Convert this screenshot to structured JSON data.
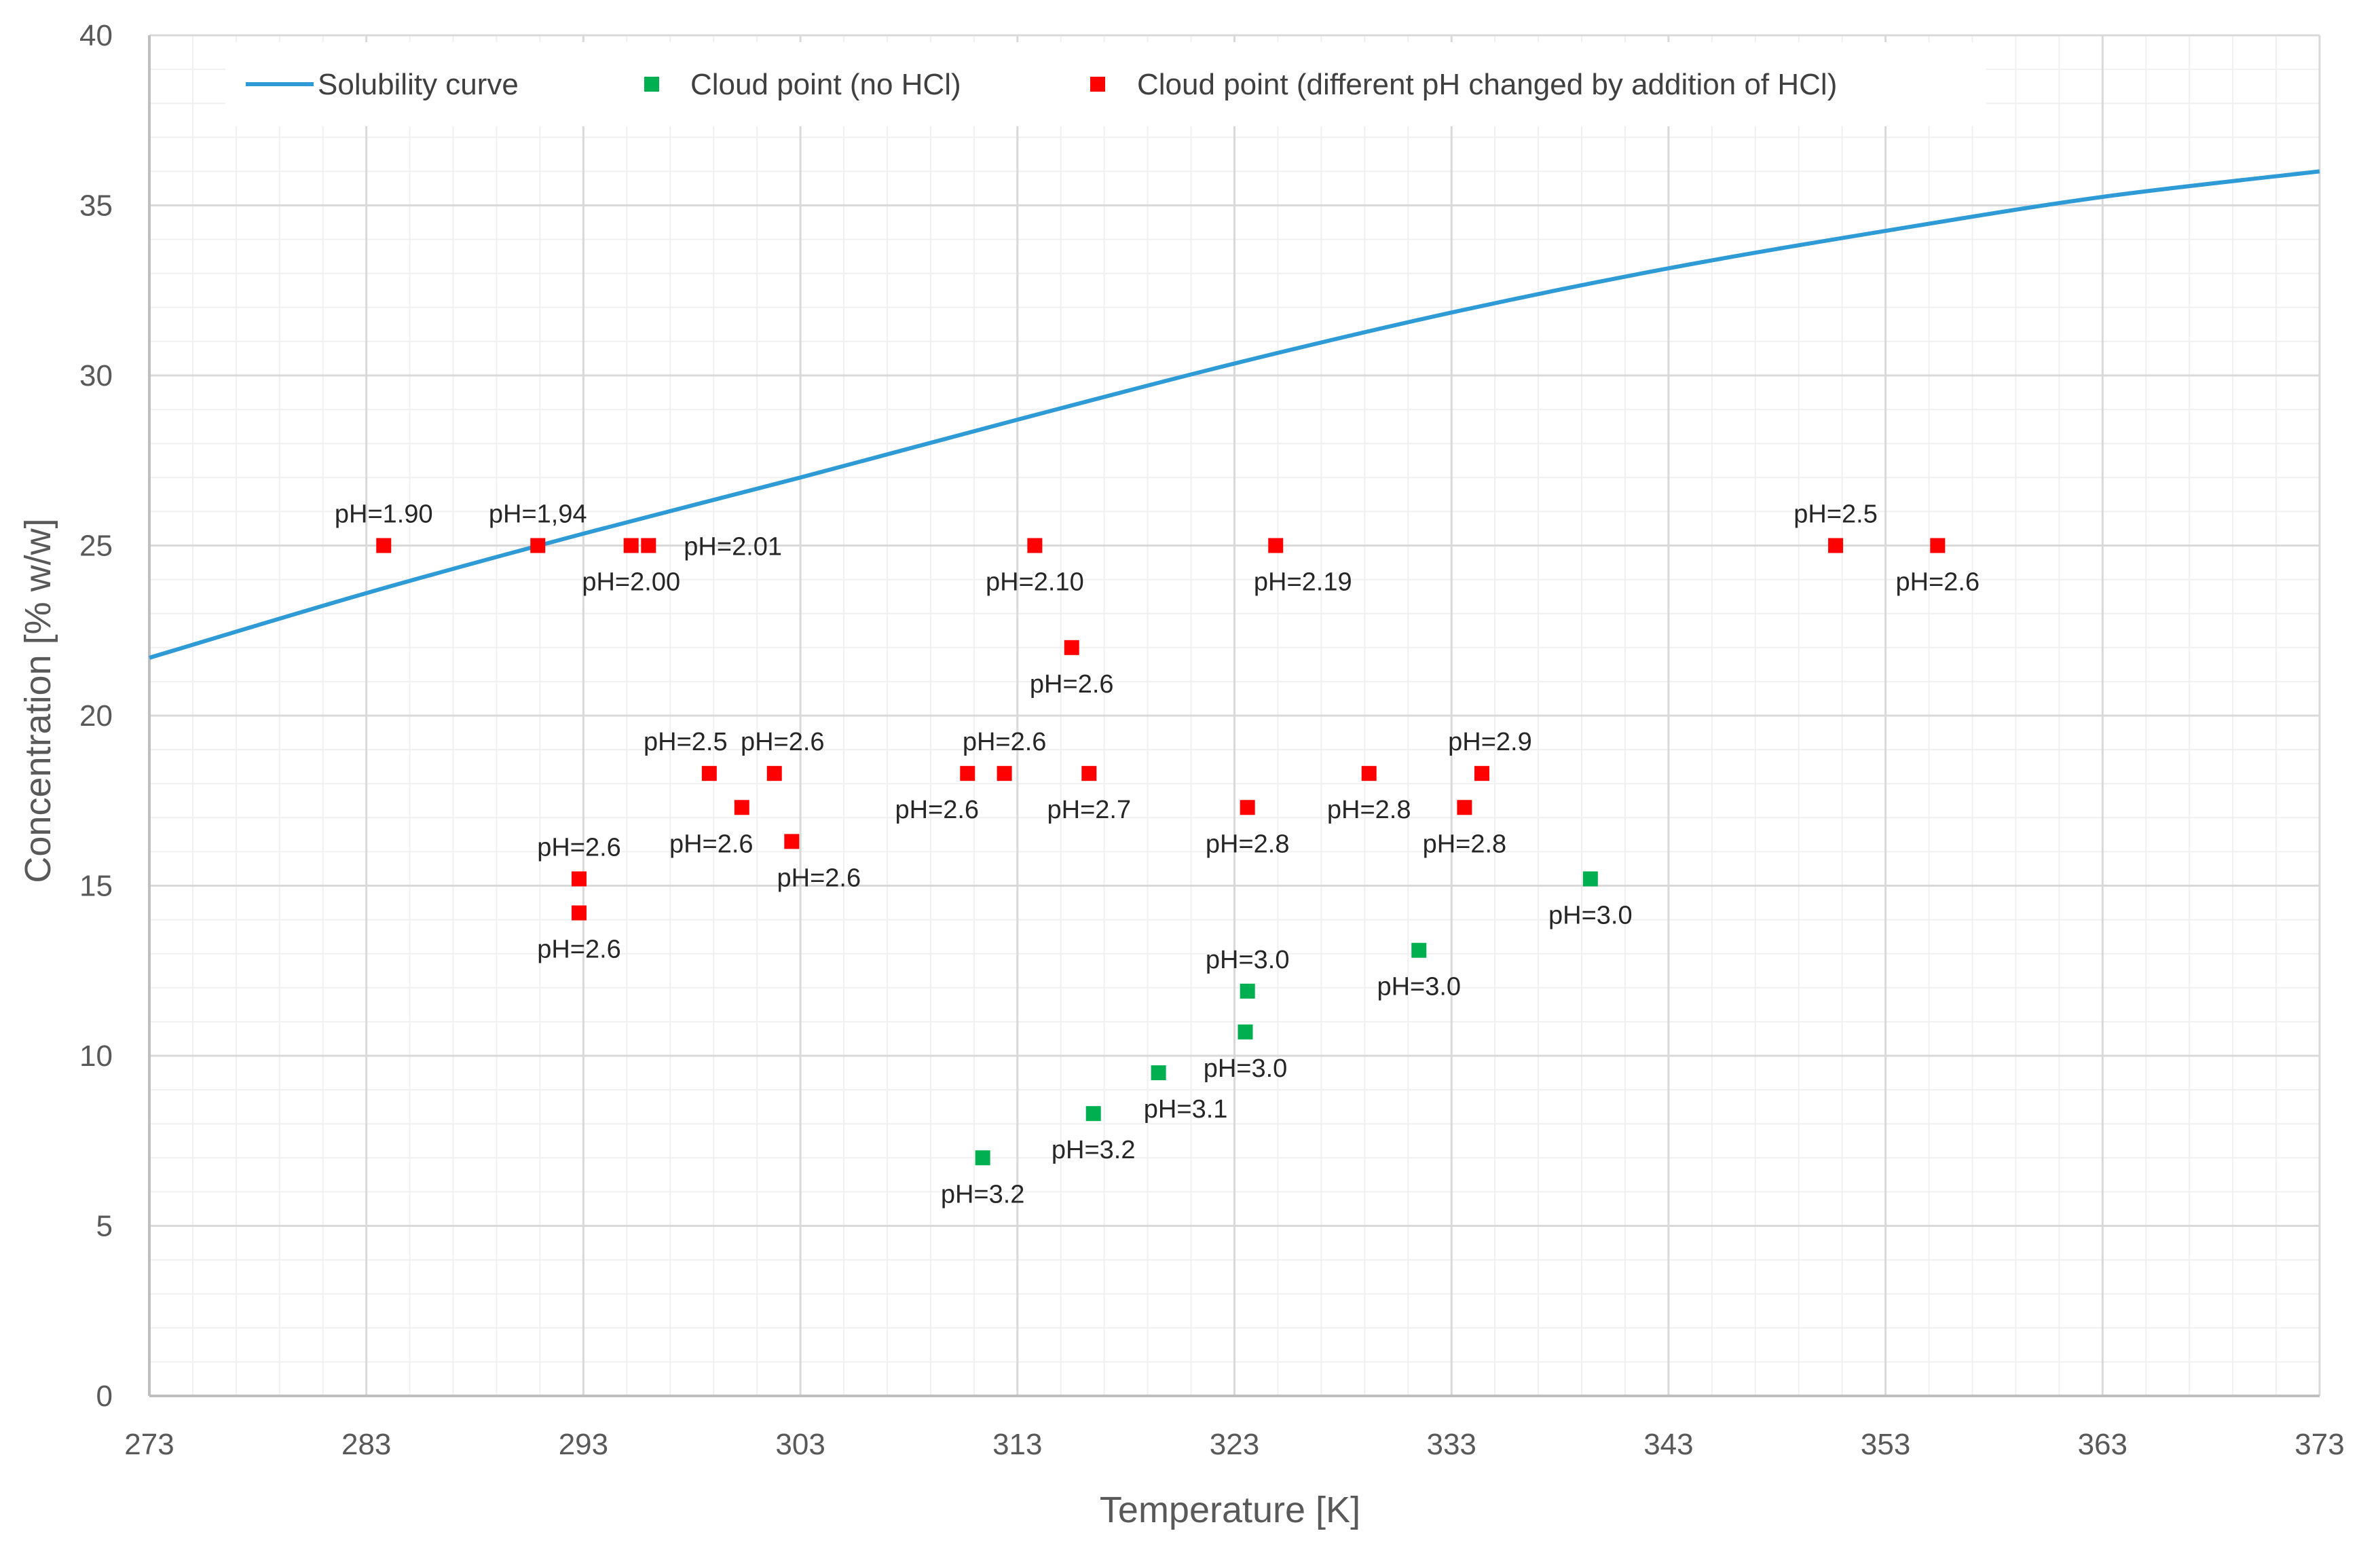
{
  "chart_data": {
    "type": "scatter",
    "xlabel": "Temperature [K]",
    "ylabel": "Concentration [% w/w]",
    "xlim": [
      273,
      373
    ],
    "ylim": [
      0,
      40
    ],
    "x_ticks": [
      273,
      283,
      293,
      303,
      313,
      323,
      333,
      343,
      353,
      363,
      373
    ],
    "y_ticks": [
      0,
      5,
      10,
      15,
      20,
      25,
      30,
      35,
      40
    ],
    "x_minor_step": 2,
    "y_minor_step": 1,
    "grid": true,
    "legend_position": "top",
    "colors": {
      "solubility": "#2e9bd6",
      "no_hcl": "#00b050",
      "hcl": "#ff0000",
      "major_grid": "#d9d9d9",
      "minor_grid": "#f0f0f0",
      "axis": "#bfbfbf"
    },
    "series": [
      {
        "name": "Solubility curve",
        "kind": "line",
        "key": "solubility",
        "x": [
          273,
          283,
          293,
          303,
          313,
          323,
          333,
          343,
          353,
          363,
          373
        ],
        "y": [
          21.7,
          23.6,
          25.35,
          27.0,
          28.7,
          30.35,
          31.85,
          33.15,
          34.25,
          35.25,
          36.0
        ]
      },
      {
        "name": "Cloud point (no HCl)",
        "kind": "scatter",
        "key": "no_hcl",
        "points": [
          {
            "x": 311.4,
            "y": 7.0,
            "label": "pH=3.2",
            "label_pos": "below"
          },
          {
            "x": 316.5,
            "y": 8.3,
            "label": "pH=3.2",
            "label_pos": "below"
          },
          {
            "x": 319.5,
            "y": 9.5,
            "label": "pH=3.1",
            "label_pos": "below-right"
          },
          {
            "x": 323.5,
            "y": 10.7,
            "label": "pH=3.0",
            "label_pos": "below"
          },
          {
            "x": 323.6,
            "y": 11.9,
            "label": "pH=3.0",
            "label_pos": "above"
          },
          {
            "x": 331.5,
            "y": 13.1,
            "label": "pH=3.0",
            "label_pos": "below"
          },
          {
            "x": 339.4,
            "y": 15.2,
            "label": "pH=3.0",
            "label_pos": "below"
          }
        ]
      },
      {
        "name": "Cloud point (different pH changed by addition of HCl)",
        "kind": "scatter",
        "key": "hcl",
        "points": [
          {
            "x": 283.8,
            "y": 25.0,
            "label": "pH=1.90",
            "label_pos": "above"
          },
          {
            "x": 290.9,
            "y": 25.0,
            "label": "pH=1,94",
            "label_pos": "above"
          },
          {
            "x": 295.2,
            "y": 25.0,
            "label": "pH=2.00",
            "label_pos": "below"
          },
          {
            "x": 296.0,
            "y": 25.0,
            "label": "pH=2.01",
            "label_pos": "right"
          },
          {
            "x": 313.8,
            "y": 25.0,
            "label": "pH=2.10",
            "label_pos": "below"
          },
          {
            "x": 324.9,
            "y": 25.0,
            "label": "pH=2.19",
            "label_pos": "below-right"
          },
          {
            "x": 350.7,
            "y": 25.0,
            "label": "pH=2.5",
            "label_pos": "above"
          },
          {
            "x": 355.4,
            "y": 25.0,
            "label": "pH=2.6",
            "label_pos": "below"
          },
          {
            "x": 315.5,
            "y": 22.0,
            "label": "pH=2.6",
            "label_pos": "below"
          },
          {
            "x": 298.8,
            "y": 18.3,
            "label": "pH=2.5",
            "label_pos": "above-left"
          },
          {
            "x": 301.8,
            "y": 18.3,
            "label": "pH=2.6",
            "label_pos": "above-right"
          },
          {
            "x": 300.3,
            "y": 17.3,
            "label": "pH=2.6",
            "label_pos": "below-left"
          },
          {
            "x": 302.6,
            "y": 16.3,
            "label": "pH=2.6",
            "label_pos": "below-right"
          },
          {
            "x": 310.7,
            "y": 18.3,
            "label": "pH=2.6",
            "label_pos": "below-left"
          },
          {
            "x": 312.4,
            "y": 18.3,
            "label": "pH=2.6",
            "label_pos": "above"
          },
          {
            "x": 316.3,
            "y": 18.3,
            "label": "pH=2.7",
            "label_pos": "below"
          },
          {
            "x": 292.8,
            "y": 15.2,
            "label": "pH=2.6",
            "label_pos": "above"
          },
          {
            "x": 292.8,
            "y": 14.2,
            "label": "pH=2.6",
            "label_pos": "below"
          },
          {
            "x": 323.6,
            "y": 17.3,
            "label": "pH=2.8",
            "label_pos": "below"
          },
          {
            "x": 329.2,
            "y": 18.3,
            "label": "pH=2.8",
            "label_pos": "below"
          },
          {
            "x": 333.6,
            "y": 17.3,
            "label": "pH=2.8",
            "label_pos": "below"
          },
          {
            "x": 334.4,
            "y": 18.3,
            "label": "pH=2.9",
            "label_pos": "above-right"
          }
        ]
      }
    ]
  }
}
